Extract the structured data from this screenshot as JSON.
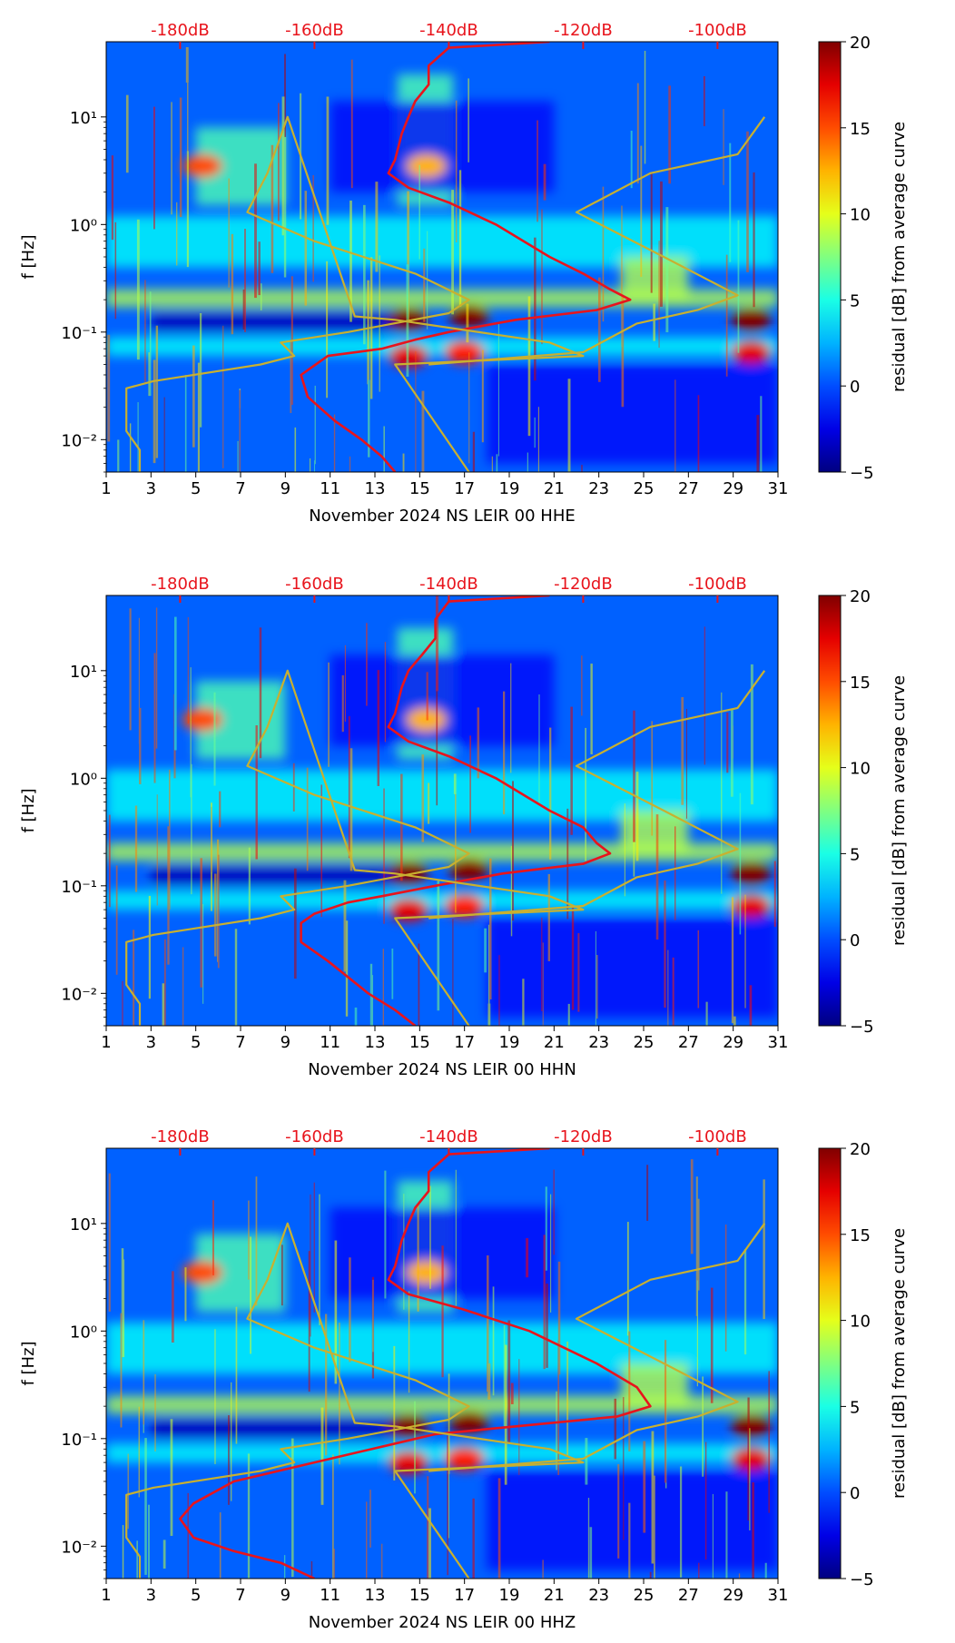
{
  "figure": {
    "colorbar": {
      "label": "residual [dB] from average curve",
      "ticks": [
        "20",
        "15",
        "10",
        "5",
        "0",
        "−5"
      ],
      "tick_values": [
        20,
        15,
        10,
        5,
        0,
        -5
      ],
      "range": [
        -5,
        20
      ],
      "colormap": "jet"
    },
    "colors": {
      "power_curve": "#e8141c",
      "noise_model": "#c8b030",
      "top_axis_text": "#e8141c"
    }
  },
  "chart_data": [
    {
      "type": "heatmap",
      "panel": "HHE",
      "xlabel": "November 2024 NS LEIR 00 HHE",
      "ylabel": "f [Hz]",
      "x_ticks": [
        "1",
        "3",
        "5",
        "7",
        "9",
        "11",
        "13",
        "15",
        "17",
        "19",
        "21",
        "23",
        "25",
        "27",
        "29",
        "31"
      ],
      "x_tick_values": [
        1,
        3,
        5,
        7,
        9,
        11,
        13,
        15,
        17,
        19,
        21,
        23,
        25,
        27,
        29,
        31
      ],
      "xlim": [
        1,
        31
      ],
      "y_ticks": [
        "10⁻²",
        "10⁻¹",
        "10⁰",
        "10¹"
      ],
      "y_tick_values": [
        0.01,
        0.1,
        1,
        10
      ],
      "ylim": [
        0.005,
        50
      ],
      "top_ticks": [
        "-180dB",
        "-160dB",
        "-140dB",
        "-120dB",
        "-100dB"
      ],
      "top_tick_values": [
        -180,
        -160,
        -140,
        -120,
        -100
      ],
      "top_range_db": [
        -191,
        -91
      ],
      "series": [
        {
          "name": "average power curve",
          "color": "#e8141c",
          "points": [
            [
              -125,
              50
            ],
            [
              -140,
              44
            ],
            [
              -143,
              30
            ],
            [
              -143,
              20
            ],
            [
              -145,
              14
            ],
            [
              -146,
              10
            ],
            [
              -147,
              7
            ],
            [
              -148,
              4
            ],
            [
              -149,
              3
            ],
            [
              -146,
              2.2
            ],
            [
              -140,
              1.6
            ],
            [
              -133,
              1.0
            ],
            [
              -125,
              0.5
            ],
            [
              -120,
              0.35
            ],
            [
              -116,
              0.25
            ],
            [
              -113,
              0.2
            ],
            [
              -118,
              0.16
            ],
            [
              -130,
              0.13
            ],
            [
              -140,
              0.1
            ],
            [
              -145,
              0.085
            ],
            [
              -150,
              0.07
            ],
            [
              -158,
              0.06
            ],
            [
              -162,
              0.04
            ],
            [
              -161,
              0.025
            ],
            [
              -157,
              0.015
            ],
            [
              -153,
              0.01
            ],
            [
              -150,
              0.007
            ],
            [
              -148,
              0.005
            ]
          ]
        },
        {
          "name": "noise model",
          "color": "#c8b030",
          "points": [
            [
              -186,
              0.005
            ],
            [
              -186,
              0.008
            ],
            [
              -188,
              0.012
            ],
            [
              -188,
              0.02
            ],
            [
              -188,
              0.03
            ],
            [
              -184,
              0.035
            ],
            [
              -168,
              0.05
            ],
            [
              -163,
              0.06
            ],
            [
              -165,
              0.08
            ],
            [
              -155,
              0.1
            ],
            [
              -140,
              0.15
            ],
            [
              -137,
              0.2
            ],
            [
              -145,
              0.35
            ],
            [
              -160,
              0.7
            ],
            [
              -170,
              1.3
            ],
            [
              -167,
              3
            ],
            [
              -164,
              10
            ],
            [
              -154,
              0.14
            ],
            [
              -148,
              0.13
            ],
            [
              -125,
              0.08
            ],
            [
              -120,
              0.06
            ],
            [
              -148,
              0.05
            ],
            [
              -137,
              0.005
            ]
          ]
        },
        {
          "name": "noise model high",
          "color": "#c8b030",
          "points": [
            [
              -93,
              10
            ],
            [
              -97,
              4.5
            ],
            [
              -110,
              3
            ],
            [
              -121,
              1.3
            ],
            [
              -108,
              0.5
            ],
            [
              -97,
              0.22
            ],
            [
              -103,
              0.16
            ],
            [
              -112,
              0.12
            ],
            [
              -120,
              0.065
            ],
            [
              -143,
              0.05
            ]
          ]
        }
      ]
    },
    {
      "type": "heatmap",
      "panel": "HHN",
      "xlabel": "November 2024 NS LEIR 00 HHN",
      "ylabel": "f [Hz]",
      "x_ticks": [
        "1",
        "3",
        "5",
        "7",
        "9",
        "11",
        "13",
        "15",
        "17",
        "19",
        "21",
        "23",
        "25",
        "27",
        "29",
        "31"
      ],
      "x_tick_values": [
        1,
        3,
        5,
        7,
        9,
        11,
        13,
        15,
        17,
        19,
        21,
        23,
        25,
        27,
        29,
        31
      ],
      "xlim": [
        1,
        31
      ],
      "y_ticks": [
        "10⁻²",
        "10⁻¹",
        "10⁰",
        "10¹"
      ],
      "y_tick_values": [
        0.01,
        0.1,
        1,
        10
      ],
      "ylim": [
        0.005,
        50
      ],
      "top_ticks": [
        "-180dB",
        "-160dB",
        "-140dB",
        "-120dB",
        "-100dB"
      ],
      "top_tick_values": [
        -180,
        -160,
        -140,
        -120,
        -100
      ],
      "top_range_db": [
        -191,
        -91
      ],
      "series": [
        {
          "name": "average power curve",
          "color": "#e8141c",
          "points": [
            [
              -125,
              50
            ],
            [
              -140,
              44
            ],
            [
              -142,
              30
            ],
            [
              -142,
              20
            ],
            [
              -144,
              14
            ],
            [
              -146,
              10
            ],
            [
              -147,
              7
            ],
            [
              -148,
              4
            ],
            [
              -149,
              3
            ],
            [
              -146,
              2.2
            ],
            [
              -140,
              1.6
            ],
            [
              -133,
              1.0
            ],
            [
              -125,
              0.5
            ],
            [
              -120,
              0.35
            ],
            [
              -118,
              0.25
            ],
            [
              -116,
              0.2
            ],
            [
              -120,
              0.16
            ],
            [
              -132,
              0.13
            ],
            [
              -142,
              0.1
            ],
            [
              -150,
              0.08
            ],
            [
              -155,
              0.07
            ],
            [
              -160,
              0.055
            ],
            [
              -162,
              0.045
            ],
            [
              -162,
              0.03
            ],
            [
              -158,
              0.02
            ],
            [
              -152,
              0.01
            ],
            [
              -148,
              0.007
            ],
            [
              -145,
              0.005
            ]
          ]
        },
        {
          "name": "noise model",
          "color": "#c8b030",
          "points": [
            [
              -186,
              0.005
            ],
            [
              -186,
              0.008
            ],
            [
              -188,
              0.012
            ],
            [
              -188,
              0.02
            ],
            [
              -188,
              0.03
            ],
            [
              -184,
              0.035
            ],
            [
              -168,
              0.05
            ],
            [
              -163,
              0.06
            ],
            [
              -165,
              0.08
            ],
            [
              -155,
              0.1
            ],
            [
              -140,
              0.15
            ],
            [
              -137,
              0.2
            ],
            [
              -145,
              0.35
            ],
            [
              -160,
              0.7
            ],
            [
              -170,
              1.3
            ],
            [
              -167,
              3
            ],
            [
              -164,
              10
            ],
            [
              -154,
              0.14
            ],
            [
              -148,
              0.13
            ],
            [
              -125,
              0.08
            ],
            [
              -120,
              0.06
            ],
            [
              -148,
              0.05
            ],
            [
              -137,
              0.005
            ]
          ]
        },
        {
          "name": "noise model high",
          "color": "#c8b030",
          "points": [
            [
              -93,
              10
            ],
            [
              -97,
              4.5
            ],
            [
              -110,
              3
            ],
            [
              -121,
              1.3
            ],
            [
              -108,
              0.5
            ],
            [
              -97,
              0.22
            ],
            [
              -103,
              0.16
            ],
            [
              -112,
              0.12
            ],
            [
              -120,
              0.065
            ],
            [
              -143,
              0.05
            ]
          ]
        }
      ]
    },
    {
      "type": "heatmap",
      "panel": "HHZ",
      "xlabel": "November 2024 NS LEIR 00 HHZ",
      "ylabel": "f [Hz]",
      "x_ticks": [
        "1",
        "3",
        "5",
        "7",
        "9",
        "11",
        "13",
        "15",
        "17",
        "19",
        "21",
        "23",
        "25",
        "27",
        "29",
        "31"
      ],
      "x_tick_values": [
        1,
        3,
        5,
        7,
        9,
        11,
        13,
        15,
        17,
        19,
        21,
        23,
        25,
        27,
        29,
        31
      ],
      "xlim": [
        1,
        31
      ],
      "y_ticks": [
        "10⁻²",
        "10⁻¹",
        "10⁰",
        "10¹"
      ],
      "y_tick_values": [
        0.01,
        0.1,
        1,
        10
      ],
      "ylim": [
        0.005,
        50
      ],
      "top_ticks": [
        "-180dB",
        "-160dB",
        "-140dB",
        "-120dB",
        "-100dB"
      ],
      "top_tick_values": [
        -180,
        -160,
        -140,
        -120,
        -100
      ],
      "top_range_db": [
        -191,
        -91
      ],
      "series": [
        {
          "name": "average power curve",
          "color": "#e8141c",
          "points": [
            [
              -125,
              50
            ],
            [
              -140,
              44
            ],
            [
              -143,
              30
            ],
            [
              -143,
              20
            ],
            [
              -145,
              14
            ],
            [
              -146,
              10
            ],
            [
              -147,
              7
            ],
            [
              -148,
              4
            ],
            [
              -149,
              3
            ],
            [
              -146,
              2.2
            ],
            [
              -138,
              1.6
            ],
            [
              -128,
              1.0
            ],
            [
              -118,
              0.5
            ],
            [
              -112,
              0.3
            ],
            [
              -110,
              0.2
            ],
            [
              -115,
              0.16
            ],
            [
              -130,
              0.13
            ],
            [
              -142,
              0.11
            ],
            [
              -148,
              0.09
            ],
            [
              -160,
              0.06
            ],
            [
              -172,
              0.04
            ],
            [
              -178,
              0.025
            ],
            [
              -180,
              0.018
            ],
            [
              -178,
              0.012
            ],
            [
              -172,
              0.009
            ],
            [
              -165,
              0.007
            ],
            [
              -160,
              0.005
            ]
          ]
        },
        {
          "name": "noise model",
          "color": "#c8b030",
          "points": [
            [
              -186,
              0.005
            ],
            [
              -186,
              0.008
            ],
            [
              -188,
              0.012
            ],
            [
              -188,
              0.02
            ],
            [
              -188,
              0.03
            ],
            [
              -184,
              0.035
            ],
            [
              -168,
              0.05
            ],
            [
              -163,
              0.06
            ],
            [
              -165,
              0.08
            ],
            [
              -155,
              0.1
            ],
            [
              -140,
              0.15
            ],
            [
              -137,
              0.2
            ],
            [
              -145,
              0.35
            ],
            [
              -160,
              0.7
            ],
            [
              -170,
              1.3
            ],
            [
              -167,
              3
            ],
            [
              -164,
              10
            ],
            [
              -154,
              0.14
            ],
            [
              -148,
              0.13
            ],
            [
              -125,
              0.08
            ],
            [
              -120,
              0.06
            ],
            [
              -148,
              0.05
            ],
            [
              -137,
              0.005
            ]
          ]
        },
        {
          "name": "noise model high",
          "color": "#c8b030",
          "points": [
            [
              -93,
              10
            ],
            [
              -97,
              4.5
            ],
            [
              -110,
              3
            ],
            [
              -121,
              1.3
            ],
            [
              -108,
              0.5
            ],
            [
              -97,
              0.22
            ],
            [
              -103,
              0.16
            ],
            [
              -112,
              0.12
            ],
            [
              -120,
              0.065
            ],
            [
              -143,
              0.05
            ]
          ]
        }
      ]
    }
  ]
}
